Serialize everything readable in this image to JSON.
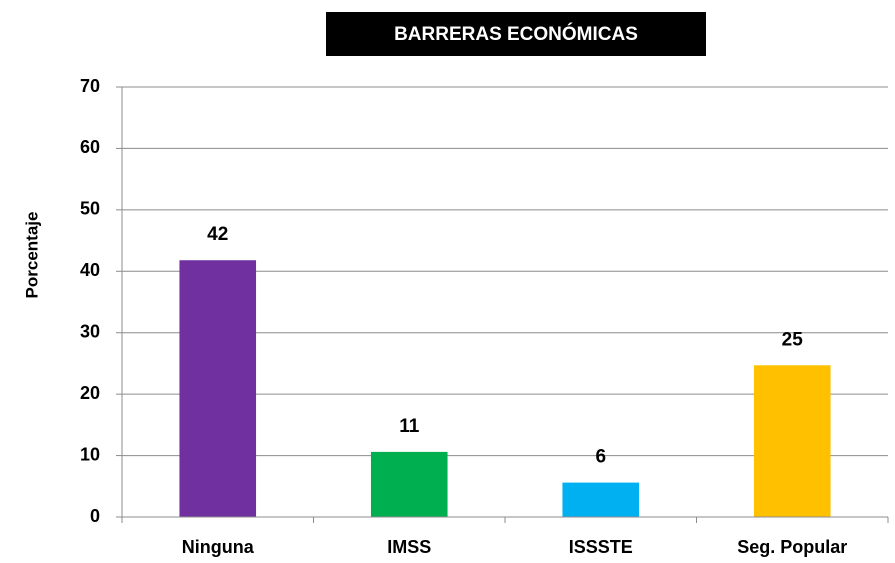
{
  "chart_data": {
    "type": "bar",
    "title": "BARRERAS ECONÓMICAS",
    "y_label": "Porcentaje",
    "categories": [
      "Ninguna",
      "IMSS",
      "ISSSTE",
      "Seg. Popular"
    ],
    "values": [
      41.8,
      10.6,
      5.6,
      24.7
    ],
    "value_labels": [
      "42",
      "11",
      "6",
      "25"
    ],
    "colors": [
      "#7030a0",
      "#00b050",
      "#00b0f0",
      "#ffc000"
    ],
    "ylim": [
      0,
      70
    ],
    "yticks": [
      0,
      10,
      20,
      30,
      40,
      50,
      60,
      70
    ],
    "grid": true
  }
}
